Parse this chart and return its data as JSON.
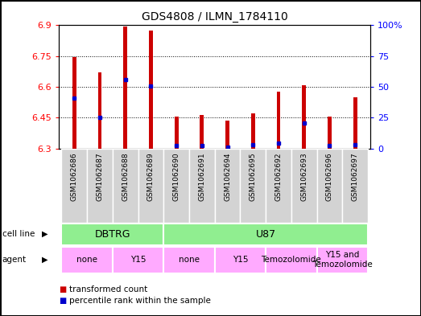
{
  "title": "GDS4808 / ILMN_1784110",
  "samples": [
    "GSM1062686",
    "GSM1062687",
    "GSM1062688",
    "GSM1062689",
    "GSM1062690",
    "GSM1062691",
    "GSM1062694",
    "GSM1062695",
    "GSM1062692",
    "GSM1062693",
    "GSM1062696",
    "GSM1062697"
  ],
  "red_values": [
    6.745,
    6.67,
    6.895,
    6.875,
    6.455,
    6.465,
    6.435,
    6.47,
    6.575,
    6.61,
    6.455,
    6.55
  ],
  "blue_values": [
    6.545,
    6.45,
    6.635,
    6.605,
    6.315,
    6.315,
    6.305,
    6.32,
    6.325,
    6.425,
    6.315,
    6.32
  ],
  "y_min": 6.3,
  "y_max": 6.9,
  "y_ticks": [
    6.3,
    6.45,
    6.6,
    6.75,
    6.9
  ],
  "y_tick_labels": [
    "6.3",
    "6.45",
    "6.6",
    "6.75",
    "6.9"
  ],
  "right_y_ticks": [
    0.0,
    0.25,
    0.5,
    0.75,
    1.0
  ],
  "right_y_tick_labels": [
    "0",
    "25",
    "50",
    "75",
    "100%"
  ],
  "bar_color": "#cc0000",
  "marker_color": "#0000cc",
  "bar_width": 0.15,
  "cell_line_groups": [
    {
      "label": "DBTRG",
      "start": 0,
      "end": 3,
      "color": "#90ee90"
    },
    {
      "label": "U87",
      "start": 4,
      "end": 11,
      "color": "#90ee90"
    }
  ],
  "agent_groups": [
    {
      "label": "none",
      "start": 0,
      "end": 1
    },
    {
      "label": "Y15",
      "start": 2,
      "end": 3
    },
    {
      "label": "none",
      "start": 4,
      "end": 5
    },
    {
      "label": "Y15",
      "start": 6,
      "end": 7
    },
    {
      "label": "Temozolomide",
      "start": 8,
      "end": 9
    },
    {
      "label": "Y15 and\nTemozolomide",
      "start": 10,
      "end": 11
    }
  ],
  "agent_color": "#ffaaff",
  "cell_line_color": "#90ee90",
  "xtick_bg_color": "#d3d3d3",
  "legend_red": "transformed count",
  "legend_blue": "percentile rank within the sample",
  "cell_line_label": "cell line",
  "agent_label": "agent"
}
